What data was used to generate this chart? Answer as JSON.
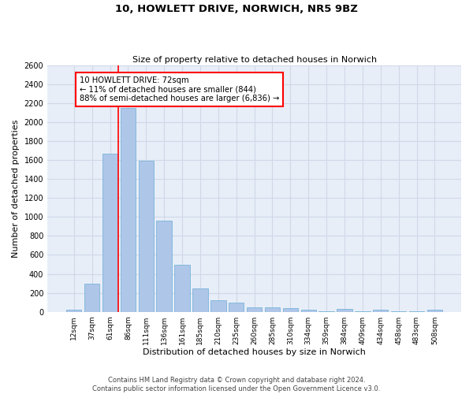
{
  "title": "10, HOWLETT DRIVE, NORWICH, NR5 9BZ",
  "subtitle": "Size of property relative to detached houses in Norwich",
  "xlabel": "Distribution of detached houses by size in Norwich",
  "ylabel": "Number of detached properties",
  "categories": [
    "12sqm",
    "37sqm",
    "61sqm",
    "86sqm",
    "111sqm",
    "136sqm",
    "161sqm",
    "185sqm",
    "210sqm",
    "235sqm",
    "260sqm",
    "285sqm",
    "310sqm",
    "334sqm",
    "359sqm",
    "384sqm",
    "409sqm",
    "434sqm",
    "458sqm",
    "483sqm",
    "508sqm"
  ],
  "bar_values": [
    25,
    300,
    1670,
    2150,
    1590,
    960,
    500,
    250,
    120,
    100,
    50,
    50,
    35,
    20,
    5,
    30,
    5,
    20,
    5,
    5,
    25
  ],
  "bar_color": "#aec6e8",
  "bar_edge_color": "#6baed6",
  "grid_color": "#d0d8e8",
  "background_color": "#e8eef8",
  "ylim": [
    0,
    2600
  ],
  "yticks": [
    0,
    200,
    400,
    600,
    800,
    1000,
    1200,
    1400,
    1600,
    1800,
    2000,
    2200,
    2400,
    2600
  ],
  "red_line_x": 2.44,
  "annotation_text": "10 HOWLETT DRIVE: 72sqm\n← 11% of detached houses are smaller (844)\n88% of semi-detached houses are larger (6,836) →",
  "footer_line1": "Contains HM Land Registry data © Crown copyright and database right 2024.",
  "footer_line2": "Contains public sector information licensed under the Open Government Licence v3.0."
}
